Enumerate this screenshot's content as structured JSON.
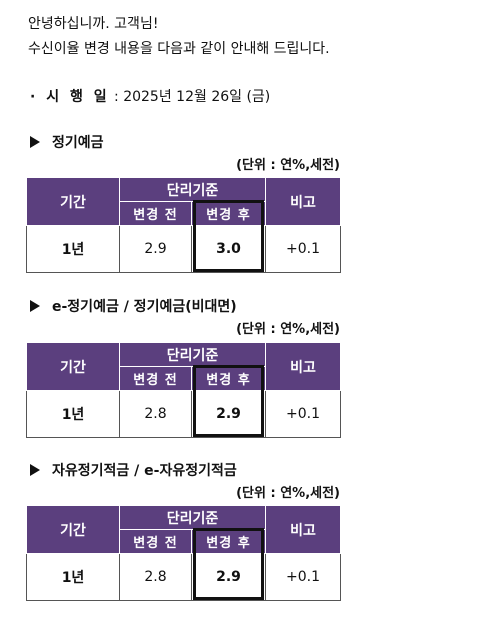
{
  "intro": {
    "line1": "안녕하십니까. 고객님!",
    "line2": "수신이율 변경 내용을 다음과 같이 안내해 드립니다."
  },
  "effective": {
    "label": "· 시 행 일",
    "value": ": 2025년 12월 26일 (금)"
  },
  "table_labels": {
    "unit": "(단위 : 연%,세전)",
    "period": "기간",
    "simple_rate": "단리기준",
    "before": "변경 전",
    "after": "변경 후",
    "note": "비고"
  },
  "sections": [
    {
      "title": "정기예금",
      "period": "1년",
      "before": "2.9",
      "after": "3.0",
      "note": "+0.1"
    },
    {
      "title": "e-정기예금 / 정기예금(비대면)",
      "period": "1년",
      "before": "2.8",
      "after": "2.9",
      "note": "+0.1"
    },
    {
      "title": "자유정기적금 / e-자유정기적금",
      "period": "1년",
      "before": "2.8",
      "after": "2.9",
      "note": "+0.1"
    }
  ],
  "colors": {
    "header_bg": "#5b3f7e",
    "header_text": "#ffffff"
  }
}
